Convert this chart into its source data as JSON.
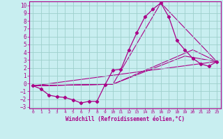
{
  "xlabel": "Windchill (Refroidissement éolien,°C)",
  "background_color": "#c8eef0",
  "grid_color": "#9dcfcc",
  "line_color": "#aa0088",
  "xlim": [
    -0.5,
    23.5
  ],
  "ylim": [
    -3.2,
    10.5
  ],
  "xticks": [
    0,
    1,
    2,
    3,
    4,
    5,
    6,
    7,
    8,
    9,
    10,
    11,
    12,
    13,
    14,
    15,
    16,
    17,
    18,
    19,
    20,
    21,
    22,
    23
  ],
  "yticks": [
    -3,
    -2,
    -1,
    0,
    1,
    2,
    3,
    4,
    5,
    6,
    7,
    8,
    9,
    10
  ],
  "main_series": [
    [
      0,
      -0.3
    ],
    [
      1,
      -0.7
    ],
    [
      2,
      -1.5
    ],
    [
      3,
      -1.7
    ],
    [
      4,
      -1.8
    ],
    [
      5,
      -2.1
    ],
    [
      6,
      -2.5
    ],
    [
      7,
      -2.3
    ],
    [
      8,
      -2.3
    ],
    [
      9,
      -0.2
    ],
    [
      10,
      1.7
    ],
    [
      11,
      1.8
    ],
    [
      12,
      4.3
    ],
    [
      13,
      6.5
    ],
    [
      14,
      8.5
    ],
    [
      15,
      9.5
    ],
    [
      16,
      10.3
    ],
    [
      17,
      8.5
    ],
    [
      18,
      5.5
    ],
    [
      19,
      4.3
    ],
    [
      20,
      3.2
    ],
    [
      21,
      2.5
    ],
    [
      22,
      2.2
    ],
    [
      23,
      2.8
    ]
  ],
  "smooth_line1": [
    [
      0,
      -0.3
    ],
    [
      23,
      2.8
    ]
  ],
  "smooth_line2": [
    [
      0,
      -0.3
    ],
    [
      10,
      -0.1
    ],
    [
      16,
      10.3
    ],
    [
      23,
      2.8
    ]
  ],
  "smooth_line3": [
    [
      0,
      -0.3
    ],
    [
      10,
      -0.1
    ],
    [
      20,
      4.3
    ],
    [
      23,
      2.8
    ]
  ],
  "smooth_line4": [
    [
      0,
      -0.3
    ],
    [
      10,
      -0.1
    ],
    [
      19,
      3.5
    ],
    [
      23,
      2.8
    ]
  ]
}
